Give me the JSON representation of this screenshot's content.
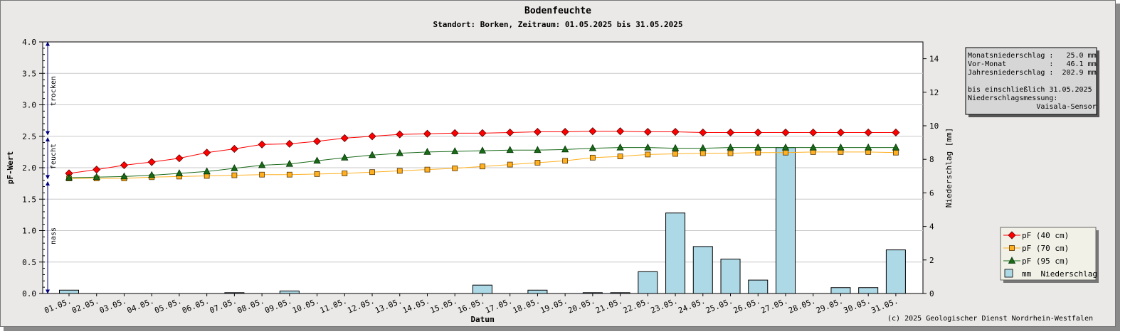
{
  "chart_data": {
    "type": "line",
    "title": "Bodenfeuchte",
    "subtitle": "Standort: Borken, Zeitraum: 01.05.2025 bis 31.05.2025",
    "xlabel": "Datum",
    "ylabel": "pF-Wert",
    "y2label": "Niederschlag [mm]",
    "ylim": [
      0,
      4.0
    ],
    "y2lim": [
      0,
      15
    ],
    "yticks": [
      "0.0",
      "0.5",
      "1.0",
      "1.5",
      "2.0",
      "2.5",
      "3.0",
      "3.5",
      "4.0"
    ],
    "y2ticks": [
      "0",
      "2",
      "4",
      "6",
      "8",
      "10",
      "12",
      "14"
    ],
    "grid": true,
    "legend_position": "bottom-right",
    "categories": [
      "01.05.",
      "02.05.",
      "03.05.",
      "04.05.",
      "05.05.",
      "06.05.",
      "07.05.",
      "08.05.",
      "09.05.",
      "10.05.",
      "11.05.",
      "12.05.",
      "13.05.",
      "14.05.",
      "15.05.",
      "16.05.",
      "17.05.",
      "18.05.",
      "19.05.",
      "20.05.",
      "21.05.",
      "22.05.",
      "23.05.",
      "24.05.",
      "25.05.",
      "26.05.",
      "27.05.",
      "28.05.",
      "29.05.",
      "30.05.",
      "31.05."
    ],
    "zones": [
      "trocken",
      "feucht",
      "nass"
    ],
    "series": [
      {
        "name": "pF (40 cm)",
        "color": "#ff0000",
        "marker": "diamond",
        "values": [
          1.91,
          1.97,
          2.04,
          2.09,
          2.15,
          2.24,
          2.3,
          2.37,
          2.38,
          2.42,
          2.47,
          2.5,
          2.53,
          2.54,
          2.55,
          2.55,
          2.56,
          2.57,
          2.57,
          2.58,
          2.58,
          2.57,
          2.57,
          2.56,
          2.56,
          2.56,
          2.56,
          2.56,
          2.56,
          2.56,
          2.56
        ]
      },
      {
        "name": "pF (70 cm)",
        "color": "#ffb020",
        "marker": "square",
        "values": [
          1.83,
          1.83,
          1.83,
          1.85,
          1.86,
          1.87,
          1.88,
          1.89,
          1.89,
          1.9,
          1.91,
          1.93,
          1.95,
          1.97,
          1.99,
          2.02,
          2.05,
          2.08,
          2.11,
          2.16,
          2.18,
          2.21,
          2.22,
          2.23,
          2.23,
          2.24,
          2.24,
          2.25,
          2.25,
          2.25,
          2.24
        ]
      },
      {
        "name": "pF (95 cm)",
        "color": "#1a6a1a",
        "marker": "triangle",
        "values": [
          1.84,
          1.85,
          1.86,
          1.88,
          1.91,
          1.94,
          1.99,
          2.04,
          2.06,
          2.11,
          2.16,
          2.2,
          2.23,
          2.25,
          2.26,
          2.27,
          2.28,
          2.28,
          2.29,
          2.31,
          2.32,
          2.32,
          2.31,
          2.31,
          2.32,
          2.32,
          2.32,
          2.32,
          2.32,
          2.32,
          2.32
        ]
      }
    ],
    "precipitation": {
      "name": "mm  Niederschlag",
      "color": "#add8e6",
      "values": [
        0.2,
        0,
        0,
        0,
        0,
        0,
        0.05,
        0,
        0.15,
        0,
        0,
        0,
        0,
        0,
        0,
        0.5,
        0,
        0.2,
        0,
        0.05,
        0.05,
        1.3,
        4.8,
        2.8,
        2.05,
        0.8,
        8.7,
        0,
        0.35,
        0.35,
        2.6
      ]
    }
  },
  "info_box": {
    "lines": [
      "Monatsniederschlag :   25.0 mm",
      "Vor-Monat          :   46.1 mm",
      "Jahresniederschlag :  202.9 mm",
      "",
      "bis einschließlich 31.05.2025",
      "Niederschlagsmessung:",
      "                Vaisala-Sensor"
    ]
  },
  "copyright": "(c) 2025 Geologischer Dienst Nordrhein-Westfalen"
}
